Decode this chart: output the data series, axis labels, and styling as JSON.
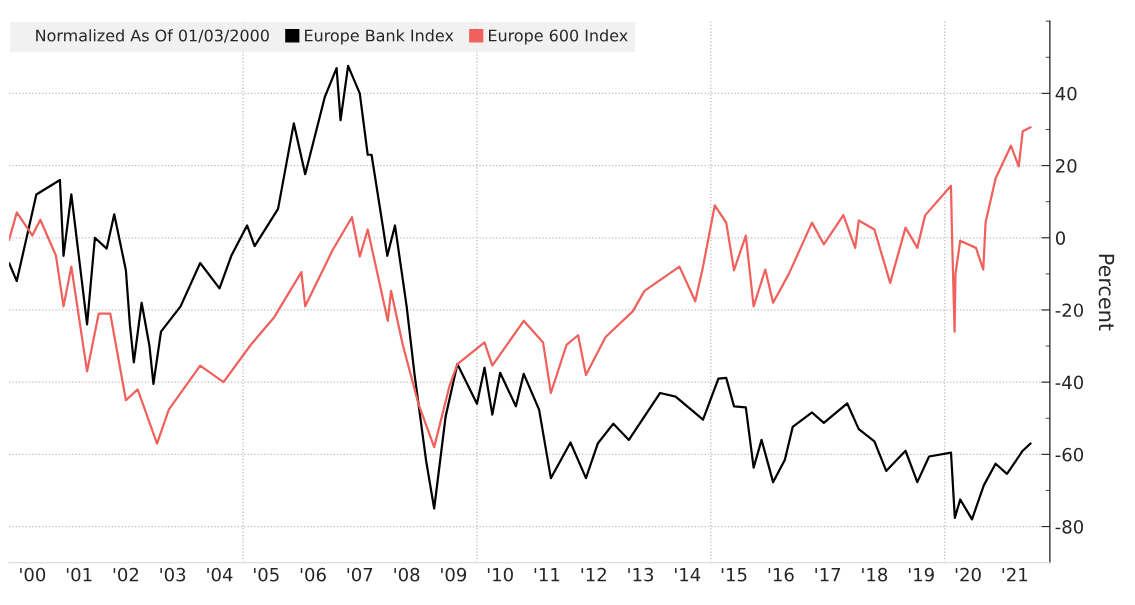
{
  "chart_data": {
    "type": "line",
    "legend_title": "Normalized As Of 01/03/2000",
    "ylabel": "Percent",
    "xlim": [
      "2000-01-01",
      "2022-04-01"
    ],
    "ylim": [
      -90,
      60
    ],
    "xticks": [
      {
        "value": "2000-07",
        "label": "'00"
      },
      {
        "value": "2001-07",
        "label": "'01"
      },
      {
        "value": "2002-07",
        "label": "'02"
      },
      {
        "value": "2003-07",
        "label": "'03"
      },
      {
        "value": "2004-07",
        "label": "'04"
      },
      {
        "value": "2005-07",
        "label": "'05"
      },
      {
        "value": "2006-07",
        "label": "'06"
      },
      {
        "value": "2007-07",
        "label": "'07"
      },
      {
        "value": "2008-07",
        "label": "'08"
      },
      {
        "value": "2009-07",
        "label": "'09"
      },
      {
        "value": "2010-07",
        "label": "'10"
      },
      {
        "value": "2011-07",
        "label": "'11"
      },
      {
        "value": "2012-07",
        "label": "'12"
      },
      {
        "value": "2013-07",
        "label": "'13"
      },
      {
        "value": "2014-07",
        "label": "'14"
      },
      {
        "value": "2015-07",
        "label": "'15"
      },
      {
        "value": "2016-07",
        "label": "'16"
      },
      {
        "value": "2017-07",
        "label": "'17"
      },
      {
        "value": "2018-07",
        "label": "'18"
      },
      {
        "value": "2019-07",
        "label": "'19"
      },
      {
        "value": "2020-07",
        "label": "'20"
      },
      {
        "value": "2021-07",
        "label": "'21"
      },
      {
        "value": "2005-01",
        "label": null
      },
      {
        "value": "2010-01",
        "label": null
      },
      {
        "value": "2015-01",
        "label": null
      },
      {
        "value": "2020-01",
        "label": null
      }
    ],
    "yticks": [
      -80,
      {
        "value": -70,
        "label": null
      },
      -60,
      {
        "value": -50,
        "label": null
      },
      -40,
      {
        "value": -30,
        "label": null
      },
      -20,
      {
        "value": -10,
        "label": null
      },
      0,
      {
        "value": 10,
        "label": null
      },
      20,
      {
        "value": 30,
        "label": null
      },
      40,
      {
        "value": 50,
        "label": null
      },
      {
        "value": 60,
        "label": null
      }
    ],
    "grid": true,
    "legend": "top left",
    "line_style": "solid",
    "marker": "none",
    "series": [
      {
        "name": "Europe Bank Index",
        "color": "#000000",
        "x": [
          "2000-01",
          "2000-03",
          "2000-08",
          "2001-02",
          "2001-03",
          "2001-05",
          "2001-09",
          "2001-11",
          "2002-02",
          "2002-04",
          "2002-07",
          "2002-08",
          "2002-09",
          "2002-11",
          "2003-01",
          "2003-02",
          "2003-04",
          "2003-09",
          "2004-02",
          "2004-07",
          "2004-10",
          "2005-02",
          "2005-04",
          "2005-10",
          "2006-02",
          "2006-05",
          "2006-10",
          "2007-01",
          "2007-02",
          "2007-04",
          "2007-07",
          "2007-09",
          "2007-10",
          "2008-01",
          "2008-02",
          "2008-04",
          "2008-07",
          "2008-09",
          "2008-12",
          "2009-02",
          "2009-05",
          "2009-08",
          "2010-01",
          "2010-03",
          "2010-05",
          "2010-07",
          "2010-11",
          "2011-01",
          "2011-05",
          "2011-08",
          "2012-01",
          "2012-05",
          "2012-08",
          "2012-12",
          "2013-04",
          "2013-12",
          "2014-04",
          "2014-11",
          "2015-03",
          "2015-05",
          "2015-07",
          "2015-10",
          "2015-12",
          "2016-02",
          "2016-05",
          "2016-08",
          "2016-10",
          "2017-03",
          "2017-06",
          "2017-12",
          "2018-03",
          "2018-07",
          "2018-10",
          "2019-03",
          "2019-06",
          "2019-09",
          "2020-02-19",
          "2020-03-20",
          "2020-05",
          "2020-08",
          "2020-11",
          "2021-02",
          "2021-05",
          "2021-09",
          "2021-11"
        ],
        "values": [
          -7,
          -12,
          12,
          16,
          -5,
          12,
          -24,
          0,
          -3,
          6.5,
          -9,
          -24,
          -34.5,
          -18,
          -30,
          -40.5,
          -26,
          -19,
          -7,
          -14,
          -5,
          3.4,
          -2.3,
          8,
          31.7,
          17.6,
          39,
          47,
          32.6,
          47.6,
          40,
          23,
          23,
          2.3,
          -5,
          3.4,
          -19,
          -38,
          -62,
          -75,
          -49.6,
          -35,
          -46,
          -36,
          -49,
          -37.4,
          -46.7,
          -37.7,
          -47.6,
          -66.6,
          -56.7,
          -66.6,
          -57,
          -51.5,
          -56,
          -43,
          -44,
          -50.4,
          -39,
          -38.8,
          -46.7,
          -47,
          -63.7,
          -56,
          -67.7,
          -61.5,
          -52.4,
          -48.4,
          -51.3,
          -45.9,
          -53,
          -56.4,
          -64.6,
          -59,
          -67.7,
          -60.6,
          -59.5,
          -77.6,
          -72.5,
          -78,
          -68.6,
          -62.6,
          -65.4,
          -59,
          -57
        ]
      },
      {
        "name": "Europe 600 Index",
        "color": "#f0605c",
        "x": [
          "2000-01",
          "2000-03",
          "2000-07",
          "2000-09",
          "2001-01",
          "2001-03",
          "2001-05",
          "2001-09",
          "2001-12",
          "2002-03",
          "2002-07",
          "2002-10",
          "2003-03",
          "2003-06",
          "2004-02",
          "2004-08",
          "2005-03",
          "2005-09",
          "2006-04",
          "2006-05",
          "2006-12",
          "2007-05",
          "2007-07",
          "2007-09",
          "2008-02-05",
          "2008-03-01",
          "2008-06",
          "2008-10",
          "2009-02",
          "2009-06",
          "2009-08",
          "2010-03",
          "2010-05",
          "2011-01",
          "2011-06",
          "2011-08",
          "2011-12",
          "2012-03",
          "2012-05",
          "2012-10",
          "2013-05",
          "2013-08",
          "2014-05",
          "2014-09",
          "2014-11",
          "2015-02",
          "2015-05",
          "2015-07",
          "2015-10",
          "2015-12",
          "2016-03",
          "2016-05",
          "2016-09",
          "2017-03",
          "2017-06",
          "2017-11",
          "2018-02",
          "2018-03",
          "2018-07",
          "2018-11",
          "2019-03",
          "2019-06",
          "2019-08",
          "2020-02-19",
          "2020-02-28",
          "2020-03-18",
          "2020-03-25",
          "2020-05",
          "2020-09",
          "2020-10-28",
          "2020-11-15",
          "2021-02",
          "2021-06",
          "2021-08",
          "2021-09",
          "2021-11"
        ],
        "values": [
          -0.6,
          7,
          0.6,
          5,
          -5,
          -19,
          -8,
          -37,
          -21,
          -21,
          -45,
          -42,
          -57,
          -47.6,
          -35.4,
          -40,
          -29.7,
          -22,
          -9.5,
          -19,
          -3.4,
          5.7,
          -5.2,
          2.3,
          -23,
          -14.7,
          -29.7,
          -46,
          -58,
          -41,
          -35,
          -29,
          -35.4,
          -23,
          -29,
          -43,
          -29.7,
          -27,
          -38,
          -27.5,
          -20.4,
          -14.7,
          -8,
          -17.6,
          -8,
          9,
          4.2,
          -9,
          0.6,
          -19,
          -8.8,
          -18,
          -10,
          4.2,
          -1.8,
          6.3,
          -2.8,
          4.8,
          2.3,
          -12.5,
          2.8,
          -2.8,
          6.2,
          14.4,
          -0.8,
          -26,
          -10,
          -0.8,
          -2.8,
          -8.8,
          4.2,
          16.4,
          25.5,
          19.8,
          29.5,
          30.6
        ]
      }
    ]
  }
}
